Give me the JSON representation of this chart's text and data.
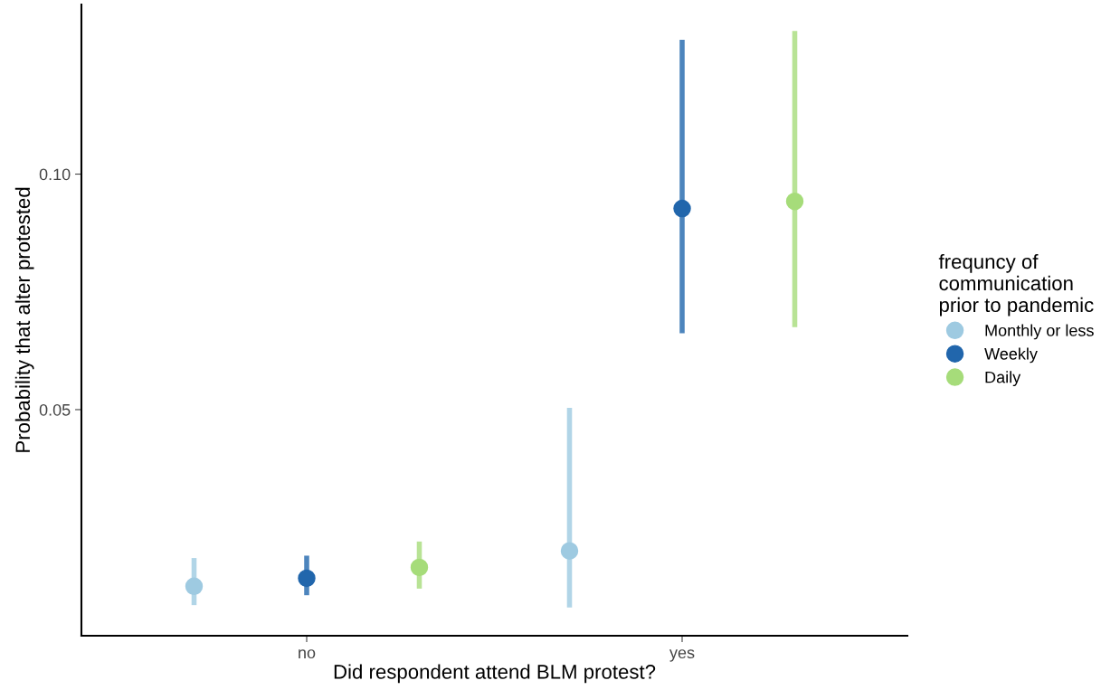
{
  "chart_data": {
    "type": "scatter",
    "xlabel": "Did respondent attend BLM protest?",
    "ylabel": "Probability that alter protested",
    "legend_title": "frequncy of\ncommunication\nprior to pandemic",
    "categories": [
      "no",
      "yes"
    ],
    "series": [
      {
        "name": "Monthly or less",
        "color": "#9ecae1",
        "values": [
          0.0125,
          0.02
        ],
        "errors": [
          [
            0.0085,
            0.0185
          ],
          [
            0.008,
            0.0504
          ]
        ]
      },
      {
        "name": "Weekly",
        "color": "#2166ac",
        "values": [
          0.0142,
          0.0927
        ],
        "errors": [
          [
            0.0106,
            0.019
          ],
          [
            0.0662,
            0.1285
          ]
        ]
      },
      {
        "name": "Daily",
        "color": "#a6dc7a",
        "values": [
          0.0165,
          0.0942
        ],
        "errors": [
          [
            0.012,
            0.022
          ],
          [
            0.0675,
            0.1304
          ]
        ]
      }
    ],
    "ylim": [
      0.002,
      0.136
    ],
    "yticks": [
      {
        "value": 0.05,
        "label": "0.05"
      },
      {
        "value": 0.1,
        "label": "0.10"
      }
    ],
    "grid": false,
    "legend": "right",
    "marker": "circle"
  }
}
